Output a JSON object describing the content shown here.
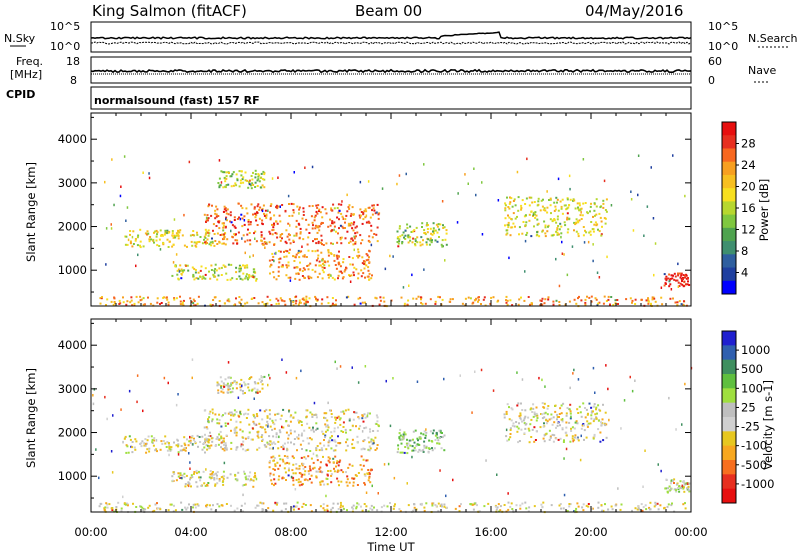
{
  "header": {
    "station": "King Salmon (fitACF)",
    "beam": "Beam 00",
    "date": "04/May/2016"
  },
  "top_panels": {
    "nsky_label": "N.Sky",
    "nsearch_label": "N.Search",
    "noise_ticks": [
      "10^5",
      "10^0"
    ],
    "freq_label": "Freq.",
    "freq_unit": "[MHz]",
    "freq_ticks": [
      "18",
      "8"
    ],
    "nave_label": "Nave",
    "nave_ticks": [
      "60",
      "0"
    ],
    "cpid_label": "CPID",
    "cpid_value": "normalsound (fast) 157 RF"
  },
  "colors": {
    "power_scale": [
      "#0000ff",
      "#1f3f9f",
      "#2f5f9f",
      "#3f8f6f",
      "#4fa34f",
      "#7fc73f",
      "#b7d72f",
      "#f7df1f",
      "#f7bf1f",
      "#f79f1f",
      "#f7671f",
      "#e72f1f",
      "#e70f0f"
    ],
    "velocity_scale": [
      "#1f1fcf",
      "#2f5faf",
      "#3f8f5f",
      "#5fbf3f",
      "#9fdf3f",
      "#bfbfbf",
      "#d0d0d0",
      "#e7c71f",
      "#f7a71f",
      "#f76f1f",
      "#e72f1f",
      "#e70f0f"
    ]
  },
  "chart_data": [
    {
      "type": "heatmap",
      "title": "Power",
      "ylabel": "Slant Range [km]",
      "yticks": [
        "1000",
        "2000",
        "3000",
        "4000"
      ],
      "ylim": [
        180,
        4600
      ],
      "colorbar_label": "Power [dB]",
      "colorbar_ticks": [
        "4",
        "8",
        "12",
        "16",
        "20",
        "24",
        "28"
      ],
      "clim": [
        0,
        30
      ],
      "clusters": [
        {
          "t": [
            1.3,
            5.4
          ],
          "r": [
            1550,
            1950
          ],
          "level": 7
        },
        {
          "t": [
            4.5,
            11.5
          ],
          "r": [
            1600,
            2550
          ],
          "level": 10
        },
        {
          "t": [
            3.2,
            6.6
          ],
          "r": [
            780,
            1150
          ],
          "level": 6
        },
        {
          "t": [
            7.1,
            11.2
          ],
          "r": [
            800,
            1500
          ],
          "level": 9
        },
        {
          "t": [
            5.0,
            6.9
          ],
          "r": [
            2900,
            3300
          ],
          "level": 6
        },
        {
          "t": [
            12.2,
            14.2
          ],
          "r": [
            1550,
            2100
          ],
          "level": 6
        },
        {
          "t": [
            16.5,
            20.6
          ],
          "r": [
            1800,
            2700
          ],
          "level": 7
        },
        {
          "t": [
            22.9,
            23.9
          ],
          "r": [
            650,
            950
          ],
          "level": 12
        },
        {
          "t": [
            0.2,
            23.9
          ],
          "r": [
            200,
            420
          ],
          "level": 9
        }
      ]
    },
    {
      "type": "heatmap",
      "title": "Velocity",
      "ylabel": "Slant Range [km]",
      "yticks": [
        "1000",
        "2000",
        "3000",
        "4000"
      ],
      "ylim": [
        180,
        4600
      ],
      "colorbar_label": "Velocity [m s-1]",
      "colorbar_ticks": [
        "1000",
        "500",
        "100",
        "25",
        "-25",
        "-100",
        "-500",
        "-1000"
      ],
      "xlabel": "Time UT",
      "xticks": [
        "00:00",
        "04:00",
        "08:00",
        "12:00",
        "16:00",
        "20:00",
        "00:00"
      ],
      "xlim": [
        0,
        24
      ],
      "clusters": [
        {
          "t": [
            1.3,
            5.4
          ],
          "r": [
            1550,
            1950
          ],
          "level": 6
        },
        {
          "t": [
            4.5,
            11.5
          ],
          "r": [
            1600,
            2550
          ],
          "level": 6
        },
        {
          "t": [
            3.2,
            6.6
          ],
          "r": [
            780,
            1150
          ],
          "level": 6
        },
        {
          "t": [
            7.1,
            11.2
          ],
          "r": [
            800,
            1500
          ],
          "level": 8
        },
        {
          "t": [
            5.0,
            6.9
          ],
          "r": [
            2900,
            3300
          ],
          "level": 6
        },
        {
          "t": [
            12.2,
            14.2
          ],
          "r": [
            1550,
            2100
          ],
          "level": 4
        },
        {
          "t": [
            16.5,
            20.6
          ],
          "r": [
            1800,
            2700
          ],
          "level": 6
        },
        {
          "t": [
            22.9,
            23.9
          ],
          "r": [
            650,
            950
          ],
          "level": 5
        },
        {
          "t": [
            0.2,
            23.9
          ],
          "r": [
            200,
            420
          ],
          "level": 6
        }
      ]
    }
  ]
}
